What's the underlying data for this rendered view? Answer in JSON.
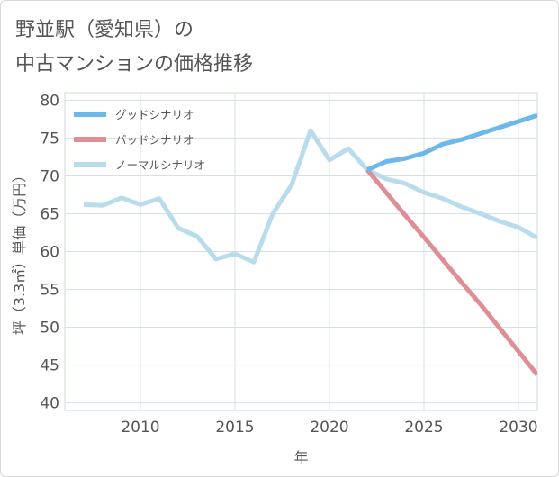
{
  "title": {
    "line1": "野並駅（愛知県）の",
    "line2": "中古マンションの価格推移"
  },
  "chart_data": {
    "type": "line",
    "xlabel": "年",
    "ylabel": "坪（3.3㎡）単価（万円）",
    "xlim": [
      2006,
      2031
    ],
    "ylim": [
      39,
      81
    ],
    "x_ticks": [
      2010,
      2015,
      2020,
      2025,
      2030
    ],
    "y_ticks": [
      40,
      45,
      50,
      55,
      60,
      65,
      70,
      75,
      80
    ],
    "grid": true,
    "legend_position": "top-left",
    "series": [
      {
        "name": "グッドシナリオ",
        "color": "#6bb8ea",
        "x": [
          2022,
          2023,
          2024,
          2025,
          2026,
          2027,
          2028,
          2029,
          2030,
          2031
        ],
        "values": [
          70.8,
          71.9,
          72.3,
          73.0,
          74.2,
          74.8,
          75.6,
          76.4,
          77.2,
          78.0
        ]
      },
      {
        "name": "バッドシナリオ",
        "color": "#de8f96",
        "x": [
          2022,
          2023,
          2024,
          2025,
          2026,
          2027,
          2028,
          2029,
          2030,
          2031
        ],
        "values": [
          70.8,
          67.8,
          64.8,
          61.9,
          58.9,
          55.9,
          53.0,
          49.9,
          46.8,
          43.7
        ]
      },
      {
        "name": "ノーマルシナリオ",
        "color": "#b9dcec",
        "x": [
          2007,
          2008,
          2009,
          2010,
          2011,
          2012,
          2013,
          2014,
          2015,
          2016,
          2017,
          2018,
          2019,
          2020,
          2021,
          2022,
          2023,
          2024,
          2025,
          2026,
          2027,
          2028,
          2029,
          2030,
          2031
        ],
        "values": [
          66.2,
          66.1,
          67.1,
          66.2,
          67.0,
          63.1,
          62.0,
          59.0,
          59.7,
          58.6,
          65.0,
          68.8,
          76.0,
          72.1,
          73.6,
          70.8,
          69.6,
          69.0,
          67.8,
          67.0,
          65.9,
          65.0,
          64.0,
          63.2,
          61.8
        ]
      }
    ]
  }
}
